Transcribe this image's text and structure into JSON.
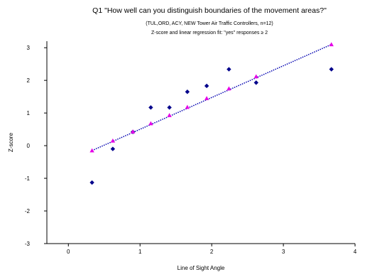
{
  "chart_data": {
    "type": "scatter",
    "title": "Q1 \"How well can you distinguish boundaries of the movement areas?\"",
    "subtitle": "(TUL,ORD, ACY, NEW Tower Air Traffic Controllers, n=12)",
    "subtitle2": "Z-score and linear regression fit:  \"yes\" responses ≥ 2",
    "xlabel": "Line of Sight Angle",
    "ylabel": "Z-score",
    "xlim": [
      -0.3,
      4
    ],
    "ylim": [
      -3,
      3.2
    ],
    "xticks": [
      0,
      1,
      2,
      3,
      4
    ],
    "yticks": [
      -3,
      -2,
      -1,
      0,
      1,
      2,
      3
    ],
    "grid": false,
    "series": [
      {
        "color": "#00008b",
        "marker": "diamond",
        "x": [
          0.33,
          0.62,
          0.9,
          1.15,
          1.41,
          1.66,
          1.93,
          2.24,
          2.62,
          3.67
        ],
        "y": [
          -1.13,
          -0.1,
          0.42,
          1.17,
          1.17,
          1.65,
          1.83,
          2.34,
          1.93,
          2.34
        ]
      },
      {
        "color": "#e600e6",
        "marker": "triangle",
        "x": [
          0.33,
          0.62,
          0.9,
          1.15,
          1.41,
          1.66,
          1.93,
          2.24,
          2.62,
          3.67
        ],
        "y": [
          -0.15,
          0.15,
          0.43,
          0.68,
          0.93,
          1.18,
          1.45,
          1.75,
          2.12,
          3.1
        ]
      }
    ],
    "fit_line": {
      "color": "#0000b0",
      "style": "dotted",
      "x": [
        0.33,
        3.67
      ],
      "y": [
        -0.15,
        3.1
      ]
    }
  }
}
